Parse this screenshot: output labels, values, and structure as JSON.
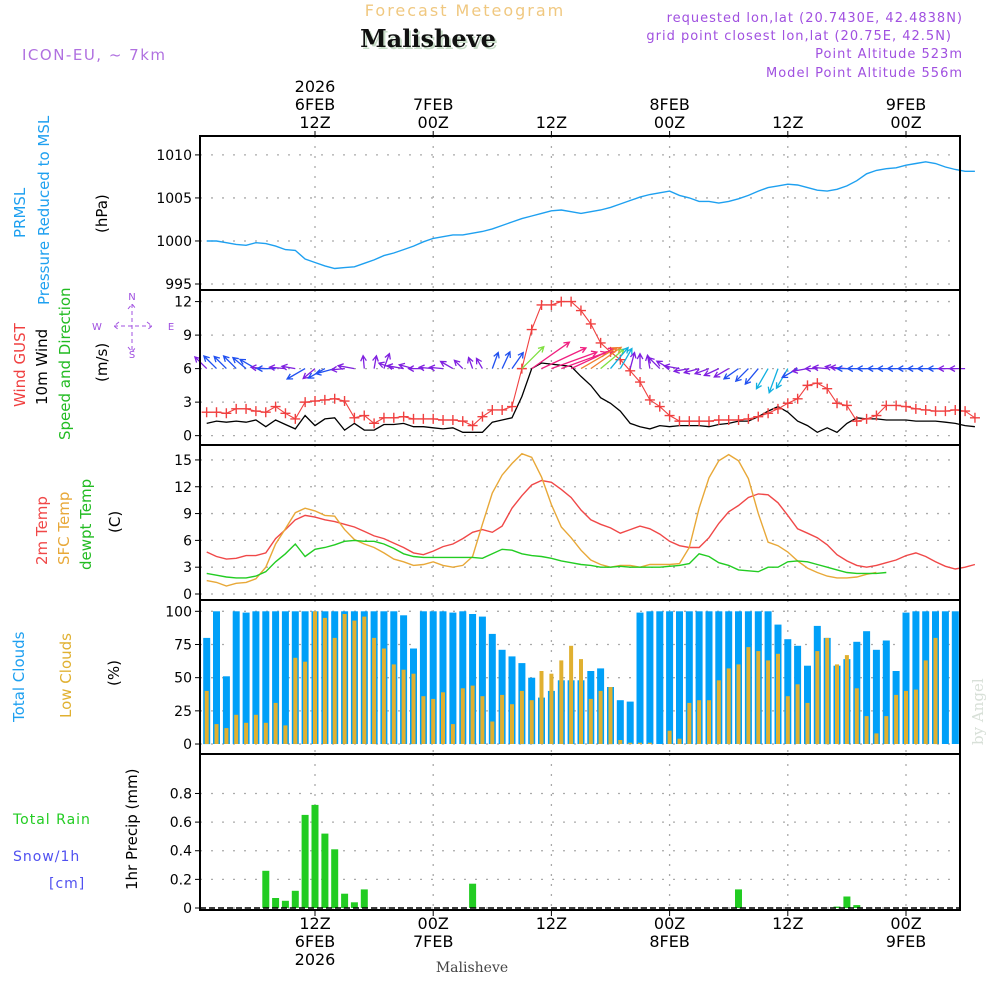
{
  "header": {
    "subtitle": "Forecast Meteogram",
    "station": "Malisheve",
    "model": "ICON-EU, ~ 7km",
    "requested": "requested lon,lat (20.7430E, 42.4838N)",
    "grid_point": "grid point closest lon,lat (20.75E, 42.5N)",
    "point_altitude": "Point Altitude 523m",
    "model_altitude": "Model Point Altitude 556m"
  },
  "footer": {
    "station": "Malisheve",
    "watermark": "by Angel"
  },
  "colors": {
    "pressure": "#1ea0f0",
    "gust": "#f04040",
    "wind": "#000000",
    "temp2m": "#f04848",
    "sfc": "#e8a838",
    "dewpt": "#22cc22",
    "total_clouds": "#00a0f8",
    "low_clouds": "#e0b030",
    "precip": "#22cc22",
    "label_purple": "#a050e0",
    "subtitle": "#f0c880"
  },
  "chart_data": [
    {
      "type": "line",
      "panel": "pressure",
      "title": "PRMSL Pressure Reduced to MSL",
      "ylabel_lines": [
        "PRMSL",
        "Pressure Reduced to MSL",
        "(hPa)"
      ],
      "ylim": [
        995,
        1011.5
      ],
      "yticks": [
        995,
        1000,
        1005,
        1010
      ],
      "grid": true,
      "x_start": "6FEB2026 01Z",
      "x_step_hours": 1,
      "series": [
        {
          "name": "PRMSL",
          "values": [
            1000.0,
            1000.0,
            999.8,
            999.6,
            999.5,
            999.8,
            999.7,
            999.4,
            999.0,
            998.9,
            997.9,
            997.5,
            997.1,
            996.8,
            996.9,
            997.0,
            997.4,
            997.8,
            998.3,
            998.6,
            999.0,
            999.4,
            999.9,
            1000.3,
            1000.5,
            1000.7,
            1000.7,
            1000.9,
            1001.1,
            1001.4,
            1001.8,
            1002.2,
            1002.6,
            1002.9,
            1003.2,
            1003.5,
            1003.6,
            1003.4,
            1003.2,
            1003.4,
            1003.6,
            1003.9,
            1004.3,
            1004.7,
            1005.1,
            1005.4,
            1005.6,
            1005.8,
            1005.3,
            1005.0,
            1004.6,
            1004.6,
            1004.4,
            1004.6,
            1004.9,
            1005.3,
            1005.8,
            1006.2,
            1006.4,
            1006.6,
            1006.5,
            1006.2,
            1005.9,
            1005.8,
            1006.0,
            1006.4,
            1007.0,
            1007.8,
            1008.2,
            1008.4,
            1008.5,
            1008.8,
            1009.0,
            1009.2,
            1009.0,
            1008.6,
            1008.3,
            1008.1,
            1008.1
          ]
        }
      ]
    },
    {
      "type": "line",
      "panel": "wind",
      "title": "Wind GUST / 10m Wind Speed and Direction",
      "ylabel_lines": [
        "Wind GUST",
        "10m Wind",
        "Speed and Direction",
        "(m/s)"
      ],
      "compass": {
        "n": "N",
        "s": "S",
        "w": "W",
        "e": "E"
      },
      "ylim": [
        -0.3,
        12.5
      ],
      "yticks": [
        0,
        3,
        6,
        9,
        12
      ],
      "grid": true,
      "x_start": "6FEB2026 01Z",
      "x_step_hours": 1,
      "series": [
        {
          "name": "Wind GUST",
          "marker": "+",
          "values": [
            2.1,
            2.1,
            2.0,
            2.4,
            2.4,
            2.2,
            2.1,
            2.6,
            2.0,
            1.5,
            3.0,
            3.1,
            3.2,
            3.3,
            3.1,
            1.6,
            1.8,
            1.1,
            1.6,
            1.6,
            1.7,
            1.5,
            1.5,
            1.5,
            1.4,
            1.4,
            1.3,
            0.9,
            1.7,
            2.3,
            2.3,
            2.6,
            6.0,
            9.5,
            11.7,
            11.7,
            12.0,
            12.0,
            11.2,
            10.0,
            8.3,
            7.5,
            6.8,
            5.8,
            4.8,
            3.2,
            2.6,
            1.8,
            1.3,
            1.3,
            1.3,
            1.3,
            1.4,
            1.4,
            1.4,
            1.5,
            1.7,
            2.0,
            2.4,
            2.9,
            3.3,
            4.5,
            4.7,
            4.2,
            2.9,
            2.7,
            1.3,
            1.5,
            1.8,
            2.7,
            2.7,
            2.6,
            2.4,
            2.3,
            2.2,
            2.2,
            2.3,
            2.2,
            1.6
          ]
        },
        {
          "name": "10m Wind",
          "values": [
            1.1,
            1.3,
            1.2,
            1.3,
            1.2,
            1.4,
            0.8,
            1.4,
            1.0,
            0.6,
            1.8,
            0.9,
            1.5,
            1.6,
            0.5,
            1.1,
            0.5,
            0.5,
            1.0,
            1.0,
            1.1,
            0.8,
            0.8,
            0.7,
            0.6,
            0.7,
            0.3,
            0.3,
            0.3,
            1.2,
            1.4,
            1.6,
            3.5,
            6.0,
            6.5,
            6.4,
            6.3,
            6.2,
            5.3,
            4.5,
            3.4,
            2.9,
            2.2,
            1.1,
            0.8,
            0.6,
            0.9,
            0.8,
            0.9,
            0.9,
            0.9,
            0.8,
            1.0,
            1.1,
            1.3,
            1.3,
            1.7,
            2.2,
            2.6,
            2.1,
            1.3,
            0.9,
            0.3,
            0.7,
            0.3,
            1.1,
            1.6,
            1.5,
            1.5,
            1.4,
            1.4,
            1.4,
            1.3,
            1.3,
            1.3,
            1.2,
            1.1,
            0.9,
            0.8
          ]
        },
        {
          "name": "Wind Direction arrows",
          "directions_deg_from": [
            135,
            135,
            135,
            135,
            130,
            120,
            95,
            90,
            95,
            100,
            60,
            50,
            60,
            75,
            85,
            100,
            175,
            190,
            200,
            110,
            100,
            105,
            90,
            95,
            95,
            120,
            135,
            160,
            150,
            200,
            205,
            215,
            225,
            235,
            245,
            250,
            250,
            245,
            240,
            235,
            230,
            220,
            210,
            195,
            180,
            170,
            135,
            120,
            100,
            80,
            75,
            70,
            65,
            60,
            55,
            45,
            40,
            30,
            20,
            30,
            60,
            80,
            90,
            95,
            100,
            95,
            90,
            90,
            90,
            90,
            90,
            90,
            90,
            90,
            90,
            90,
            90,
            90
          ]
        }
      ]
    },
    {
      "type": "line",
      "panel": "temperature",
      "title": "2m Temp / SFC Temp / dewpt Temp",
      "ylabel_lines": [
        "2m Temp",
        "SFC Temp",
        "dewpt Temp",
        "(C)"
      ],
      "ylim": [
        0,
        16
      ],
      "yticks": [
        0,
        3,
        6,
        9,
        12,
        15
      ],
      "grid": true,
      "x_start": "6FEB2026 01Z",
      "x_step_hours": 1,
      "series": [
        {
          "name": "2m Temp",
          "values": [
            4.7,
            4.2,
            3.9,
            4.0,
            4.3,
            4.3,
            4.6,
            6.2,
            7.2,
            8.3,
            8.8,
            8.6,
            8.3,
            8.1,
            7.8,
            7.5,
            7.0,
            6.5,
            6.2,
            5.7,
            5.2,
            4.6,
            4.4,
            4.8,
            5.3,
            5.6,
            6.2,
            6.9,
            7.2,
            6.9,
            7.6,
            9.6,
            11.0,
            12.2,
            12.7,
            12.5,
            11.7,
            10.8,
            9.4,
            8.3,
            7.8,
            7.4,
            6.8,
            7.2,
            7.6,
            7.3,
            6.7,
            5.9,
            5.4,
            5.2,
            5.2,
            6.3,
            7.9,
            9.2,
            9.9,
            10.8,
            11.2,
            11.1,
            10.2,
            8.8,
            7.3,
            6.8,
            6.3,
            5.5,
            4.4,
            3.7,
            3.2,
            3.0,
            3.2,
            3.5,
            3.8,
            4.3,
            4.6,
            4.2,
            3.6,
            3.1,
            2.8,
            3.0,
            3.3
          ]
        },
        {
          "name": "SFC Temp",
          "values": [
            1.5,
            1.3,
            0.9,
            1.2,
            1.3,
            1.7,
            3.0,
            5.6,
            7.3,
            9.1,
            9.6,
            9.3,
            8.8,
            8.7,
            7.2,
            6.1,
            5.6,
            5.2,
            4.6,
            3.9,
            3.6,
            3.2,
            3.3,
            3.6,
            3.2,
            3.0,
            3.2,
            4.2,
            7.8,
            11.3,
            13.3,
            14.6,
            15.7,
            15.3,
            13.1,
            10.0,
            7.5,
            6.3,
            4.9,
            3.8,
            3.3,
            3.0,
            3.2,
            3.2,
            3.0,
            3.3,
            3.3,
            3.3,
            3.4,
            5.2,
            9.6,
            13.0,
            14.9,
            15.6,
            14.9,
            12.9,
            9.0,
            5.8,
            5.4,
            4.7,
            3.7,
            2.9,
            2.4,
            2.0,
            1.8,
            1.8,
            1.9,
            2.2,
            2.4
          ]
        },
        {
          "name": "dewpt Temp",
          "values": [
            2.3,
            2.1,
            1.9,
            1.8,
            1.8,
            2.0,
            2.5,
            3.6,
            4.5,
            5.6,
            4.2,
            5.0,
            5.2,
            5.5,
            5.9,
            6.0,
            5.9,
            5.9,
            5.6,
            5.1,
            4.5,
            4.2,
            4.1,
            4.1,
            4.1,
            4.1,
            4.1,
            4.1,
            4.0,
            4.5,
            5.0,
            4.9,
            4.5,
            4.3,
            4.2,
            4.0,
            3.7,
            3.5,
            3.3,
            3.2,
            3.0,
            3.0,
            3.1,
            3.0,
            3.0,
            3.0,
            3.0,
            3.1,
            3.2,
            3.4,
            4.5,
            4.2,
            3.5,
            3.2,
            2.7,
            2.6,
            2.5,
            3.0,
            3.0,
            3.6,
            3.7,
            3.6,
            3.3,
            3.0,
            2.7,
            2.4,
            2.3,
            2.3,
            2.3,
            2.4
          ]
        }
      ]
    },
    {
      "type": "bar",
      "panel": "clouds",
      "title": "Total Clouds / Low Clouds",
      "ylabel_lines": [
        "Total Clouds",
        "Low Clouds",
        "(%)"
      ],
      "ylim": [
        -3,
        104
      ],
      "yticks": [
        0,
        25,
        50,
        75,
        100
      ],
      "grid": true,
      "x_start": "6FEB2026 01Z",
      "x_step_hours": 1,
      "series": [
        {
          "name": "Total Clouds",
          "values": [
            80,
            100,
            51,
            100,
            99,
            100,
            100,
            100,
            100,
            100,
            100,
            100,
            100,
            100,
            100,
            100,
            100,
            100,
            100,
            100,
            97,
            72,
            100,
            100,
            100,
            99,
            100,
            98,
            96,
            83,
            71,
            66,
            61,
            50,
            35,
            40,
            48,
            48,
            48,
            55,
            57,
            43,
            33,
            32,
            99,
            100,
            100,
            100,
            100,
            100,
            100,
            100,
            100,
            100,
            100,
            100,
            100,
            100,
            90,
            79,
            74,
            59,
            89,
            80,
            59,
            64,
            77,
            85,
            71,
            78,
            55,
            99,
            100,
            100,
            100,
            100,
            100,
            100,
            97,
            90
          ]
        },
        {
          "name": "Low Clouds",
          "values": [
            40,
            15,
            12,
            22,
            16,
            22,
            16,
            31,
            14,
            65,
            62,
            100,
            95,
            80,
            98,
            93,
            96,
            80,
            72,
            60,
            56,
            53,
            36,
            34,
            39,
            15,
            42,
            44,
            36,
            17,
            37,
            30,
            40,
            33,
            55,
            53,
            63,
            74,
            64,
            34,
            40,
            43,
            3,
            1,
            1,
            1,
            0,
            10,
            4,
            31,
            33,
            33,
            48,
            57,
            60,
            73,
            70,
            63,
            68,
            36,
            45,
            31,
            70,
            80,
            60,
            67,
            42,
            21,
            8,
            21,
            37,
            40,
            41,
            63,
            80
          ]
        }
      ]
    },
    {
      "type": "bar",
      "panel": "precip",
      "title": "1hr Precip (mm)",
      "ylabel_lines": [
        "1hr Precip (mm)"
      ],
      "left_labels": [
        "Total Rain",
        "Snow/1h",
        "[cm]"
      ],
      "ylim": [
        0,
        1.0
      ],
      "yticks": [
        0,
        0.2,
        0.4,
        0.6,
        0.8
      ],
      "ytick_labels": [
        "0",
        "0.2",
        "0.4",
        "0.6",
        "0.8"
      ],
      "grid": true,
      "x_start": "6FEB2026 01Z",
      "x_step_hours": 1,
      "series": [
        {
          "name": "Total Rain",
          "values": [
            0,
            0,
            0,
            0,
            0,
            0,
            0.26,
            0.07,
            0.05,
            0.12,
            0.65,
            0.72,
            0.52,
            0.41,
            0.1,
            0.04,
            0.13,
            0,
            0,
            0,
            0,
            0,
            0,
            0,
            0,
            0,
            0,
            0.17,
            0,
            0,
            0,
            0,
            0,
            0,
            0,
            0,
            0,
            0,
            0,
            0,
            0,
            0,
            0,
            0,
            0,
            0,
            0,
            0,
            0,
            0,
            0,
            0,
            0,
            0,
            0.13,
            0,
            0,
            0,
            0,
            0,
            0,
            0,
            0,
            0,
            0.01,
            0.08,
            0.02,
            0,
            0,
            0,
            0,
            0,
            0,
            0,
            0,
            0,
            0
          ]
        }
      ]
    }
  ],
  "time_axis": {
    "top_labels": [
      {
        "line1": "2026",
        "line2": "6FEB",
        "line3": "12Z",
        "hour": 11
      },
      {
        "line1": "",
        "line2": "7FEB",
        "line3": "00Z",
        "hour": 23
      },
      {
        "line1": "",
        "line2": "",
        "line3": "12Z",
        "hour": 35
      },
      {
        "line1": "",
        "line2": "8FEB",
        "line3": "00Z",
        "hour": 47
      },
      {
        "line1": "",
        "line2": "",
        "line3": "12Z",
        "hour": 59
      },
      {
        "line1": "",
        "line2": "9FEB",
        "line3": "00Z",
        "hour": 71
      }
    ],
    "bottom_labels": [
      {
        "line1": "12Z",
        "line2": "6FEB",
        "line3": "2026",
        "hour": 11
      },
      {
        "line1": "00Z",
        "line2": "7FEB",
        "line3": "",
        "hour": 23
      },
      {
        "line1": "12Z",
        "line2": "",
        "line3": "",
        "hour": 35
      },
      {
        "line1": "00Z",
        "line2": "8FEB",
        "line3": "",
        "hour": 47
      },
      {
        "line1": "12Z",
        "line2": "",
        "line3": "",
        "hour": 59
      },
      {
        "line1": "00Z",
        "line2": "9FEB",
        "line3": "",
        "hour": 71
      }
    ]
  }
}
